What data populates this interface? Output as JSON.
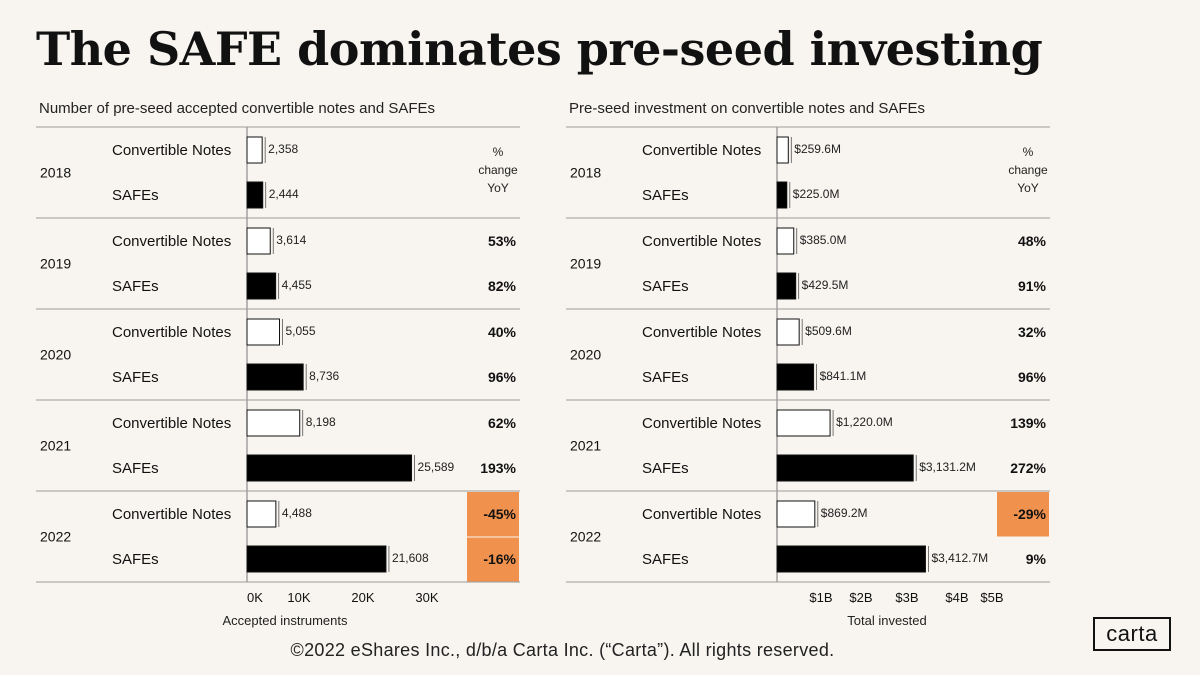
{
  "title": "The SAFE dominates pre-seed investing",
  "footer": "©2022 eShares Inc., d/b/a Carta Inc. (“Carta”). All rights reserved.",
  "logo": "carta",
  "colors": {
    "background": "#f8f5f0",
    "safe_bar": "#000000",
    "note_bar": "#ffffff",
    "highlight": "#f0924e"
  },
  "chart_data": [
    {
      "type": "bar",
      "orientation": "horizontal",
      "title": "Number of pre-seed accepted convertible notes and SAFEs",
      "xlabel": "Accepted instruments",
      "x_ticks": [
        "0K",
        "10K",
        "20K",
        "30K"
      ],
      "xlim": [
        0,
        30000
      ],
      "change_header": [
        "%",
        "change",
        "YoY"
      ],
      "groups": [
        {
          "year": "2018",
          "rows": [
            {
              "label": "Convertible Notes",
              "series": "notes",
              "value": 2358,
              "label_text": "2,358",
              "change": "",
              "highlight": false
            },
            {
              "label": "SAFEs",
              "series": "safes",
              "value": 2444,
              "label_text": "2,444",
              "change": "",
              "highlight": false
            }
          ]
        },
        {
          "year": "2019",
          "rows": [
            {
              "label": "Convertible Notes",
              "series": "notes",
              "value": 3614,
              "label_text": "3,614",
              "change": "53%",
              "highlight": false
            },
            {
              "label": "SAFEs",
              "series": "safes",
              "value": 4455,
              "label_text": "4,455",
              "change": "82%",
              "highlight": false
            }
          ]
        },
        {
          "year": "2020",
          "rows": [
            {
              "label": "Convertible Notes",
              "series": "notes",
              "value": 5055,
              "label_text": "5,055",
              "change": "40%",
              "highlight": false
            },
            {
              "label": "SAFEs",
              "series": "safes",
              "value": 8736,
              "label_text": "8,736",
              "change": "96%",
              "highlight": false
            }
          ]
        },
        {
          "year": "2021",
          "rows": [
            {
              "label": "Convertible Notes",
              "series": "notes",
              "value": 8198,
              "label_text": "8,198",
              "change": "62%",
              "highlight": false
            },
            {
              "label": "SAFEs",
              "series": "safes",
              "value": 25589,
              "label_text": "25,589",
              "change": "193%",
              "highlight": false
            }
          ]
        },
        {
          "year": "2022",
          "rows": [
            {
              "label": "Convertible Notes",
              "series": "notes",
              "value": 4488,
              "label_text": "4,488",
              "change": "-45%",
              "highlight": true
            },
            {
              "label": "SAFEs",
              "series": "safes",
              "value": 21608,
              "label_text": "21,608",
              "change": "-16%",
              "highlight": true
            }
          ]
        }
      ]
    },
    {
      "type": "bar",
      "orientation": "horizontal",
      "title": "Pre-seed investment on convertible notes and SAFEs",
      "xlabel": "Total invested",
      "x_ticks": [
        "$1B",
        "$2B",
        "$3B",
        "$4B",
        "$5B"
      ],
      "xlim": [
        0,
        5000
      ],
      "change_header": [
        "%",
        "change",
        "YoY"
      ],
      "groups": [
        {
          "year": "2018",
          "rows": [
            {
              "label": "Convertible Notes",
              "series": "notes",
              "value": 259.6,
              "label_text": "$259.6M",
              "change": "",
              "highlight": false
            },
            {
              "label": "SAFEs",
              "series": "safes",
              "value": 225.0,
              "label_text": "$225.0M",
              "change": "",
              "highlight": false
            }
          ]
        },
        {
          "year": "2019",
          "rows": [
            {
              "label": "Convertible Notes",
              "series": "notes",
              "value": 385.0,
              "label_text": "$385.0M",
              "change": "48%",
              "highlight": false
            },
            {
              "label": "SAFEs",
              "series": "safes",
              "value": 429.5,
              "label_text": "$429.5M",
              "change": "91%",
              "highlight": false
            }
          ]
        },
        {
          "year": "2020",
          "rows": [
            {
              "label": "Convertible Notes",
              "series": "notes",
              "value": 509.6,
              "label_text": "$509.6M",
              "change": "32%",
              "highlight": false
            },
            {
              "label": "SAFEs",
              "series": "safes",
              "value": 841.1,
              "label_text": "$841.1M",
              "change": "96%",
              "highlight": false
            }
          ]
        },
        {
          "year": "2021",
          "rows": [
            {
              "label": "Convertible Notes",
              "series": "notes",
              "value": 1220.0,
              "label_text": "$1,220.0M",
              "change": "139%",
              "highlight": false
            },
            {
              "label": "SAFEs",
              "series": "safes",
              "value": 3131.2,
              "label_text": "$3,131.2M",
              "change": "272%",
              "highlight": false
            }
          ]
        },
        {
          "year": "2022",
          "rows": [
            {
              "label": "Convertible Notes",
              "series": "notes",
              "value": 869.2,
              "label_text": "$869.2M",
              "change": "-29%",
              "highlight": true
            },
            {
              "label": "SAFEs",
              "series": "safes",
              "value": 3412.7,
              "label_text": "$3,412.7M",
              "change": "9%",
              "highlight": false
            }
          ]
        }
      ]
    }
  ]
}
